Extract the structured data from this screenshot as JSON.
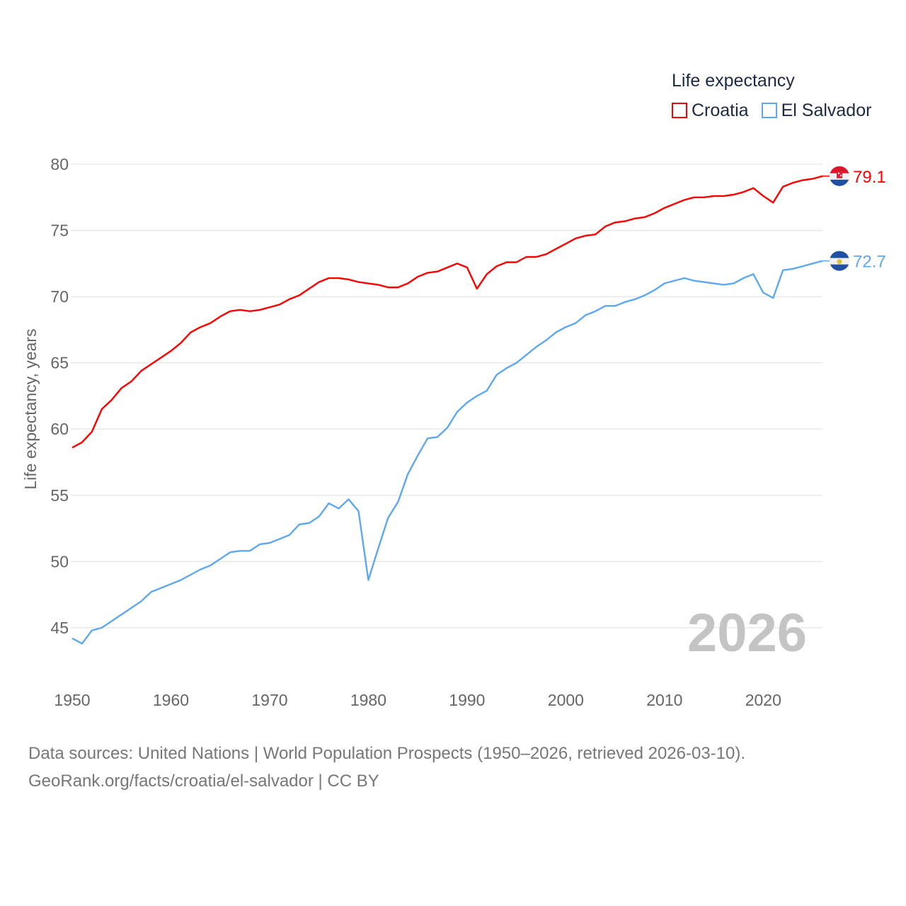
{
  "chart_data": {
    "type": "line",
    "title": "",
    "legend_title": "Life expectancy",
    "legend_position": "top-right",
    "ylabel": "Life expectancy, years",
    "xlabel": "",
    "xlim": [
      1950,
      2026
    ],
    "ylim": [
      42.5,
      81
    ],
    "xticks": [
      1950,
      1960,
      1970,
      1980,
      1990,
      2000,
      2010,
      2020
    ],
    "yticks": [
      45,
      50,
      55,
      60,
      65,
      70,
      75,
      80
    ],
    "grid": true,
    "year_watermark": "2026",
    "x_start": 1950,
    "series": [
      {
        "name": "Croatia",
        "color": "#ff0000",
        "end_label": "79.1",
        "values": [
          58.6,
          59.0,
          59.8,
          61.5,
          62.2,
          63.1,
          63.6,
          64.4,
          64.9,
          65.4,
          65.9,
          66.5,
          67.3,
          67.7,
          68.0,
          68.5,
          68.9,
          69.0,
          68.9,
          69.0,
          69.2,
          69.4,
          69.8,
          70.1,
          70.6,
          71.1,
          71.4,
          71.4,
          71.3,
          71.1,
          71.0,
          70.9,
          70.7,
          70.7,
          71.0,
          71.5,
          71.8,
          71.9,
          72.2,
          72.5,
          72.2,
          70.6,
          71.7,
          72.3,
          72.6,
          72.6,
          73.0,
          73.0,
          73.2,
          73.6,
          74.0,
          74.4,
          74.6,
          74.7,
          75.3,
          75.6,
          75.7,
          75.9,
          76.0,
          76.3,
          76.7,
          77.0,
          77.3,
          77.5,
          77.5,
          77.6,
          77.6,
          77.7,
          77.9,
          78.2,
          77.6,
          77.1,
          78.3,
          78.6,
          78.8,
          78.9,
          79.1
        ]
      },
      {
        "name": "El Salvador",
        "color": "#5ea8ee",
        "end_label": "72.7",
        "values": [
          44.2,
          43.8,
          44.8,
          45.0,
          45.5,
          46.0,
          46.5,
          47.0,
          47.7,
          48.0,
          48.3,
          48.6,
          49.0,
          49.4,
          49.7,
          50.2,
          50.7,
          50.8,
          50.8,
          51.3,
          51.4,
          51.7,
          52.0,
          52.8,
          52.9,
          53.4,
          54.4,
          54.0,
          54.7,
          53.8,
          48.6,
          51.0,
          53.3,
          54.5,
          56.6,
          58.0,
          59.3,
          59.4,
          60.1,
          61.3,
          62.0,
          62.5,
          62.9,
          64.1,
          64.6,
          65.0,
          65.6,
          66.2,
          66.7,
          67.3,
          67.7,
          68.0,
          68.6,
          68.9,
          69.3,
          69.3,
          69.6,
          69.8,
          70.1,
          70.5,
          71.0,
          71.2,
          71.4,
          71.2,
          71.1,
          71.0,
          70.9,
          71.0,
          71.4,
          71.7,
          70.3,
          69.9,
          72.0,
          72.1,
          72.3,
          72.5,
          72.7
        ]
      }
    ]
  },
  "legend": {
    "title": "Life expectancy",
    "items": [
      "Croatia",
      "El Salvador"
    ]
  },
  "footer": {
    "line1": "Data sources: United Nations | World Population Prospects (1950–2026, retrieved 2026-03-10).",
    "line2": "GeoRank.org/facts/croatia/el-salvador | CC BY"
  }
}
